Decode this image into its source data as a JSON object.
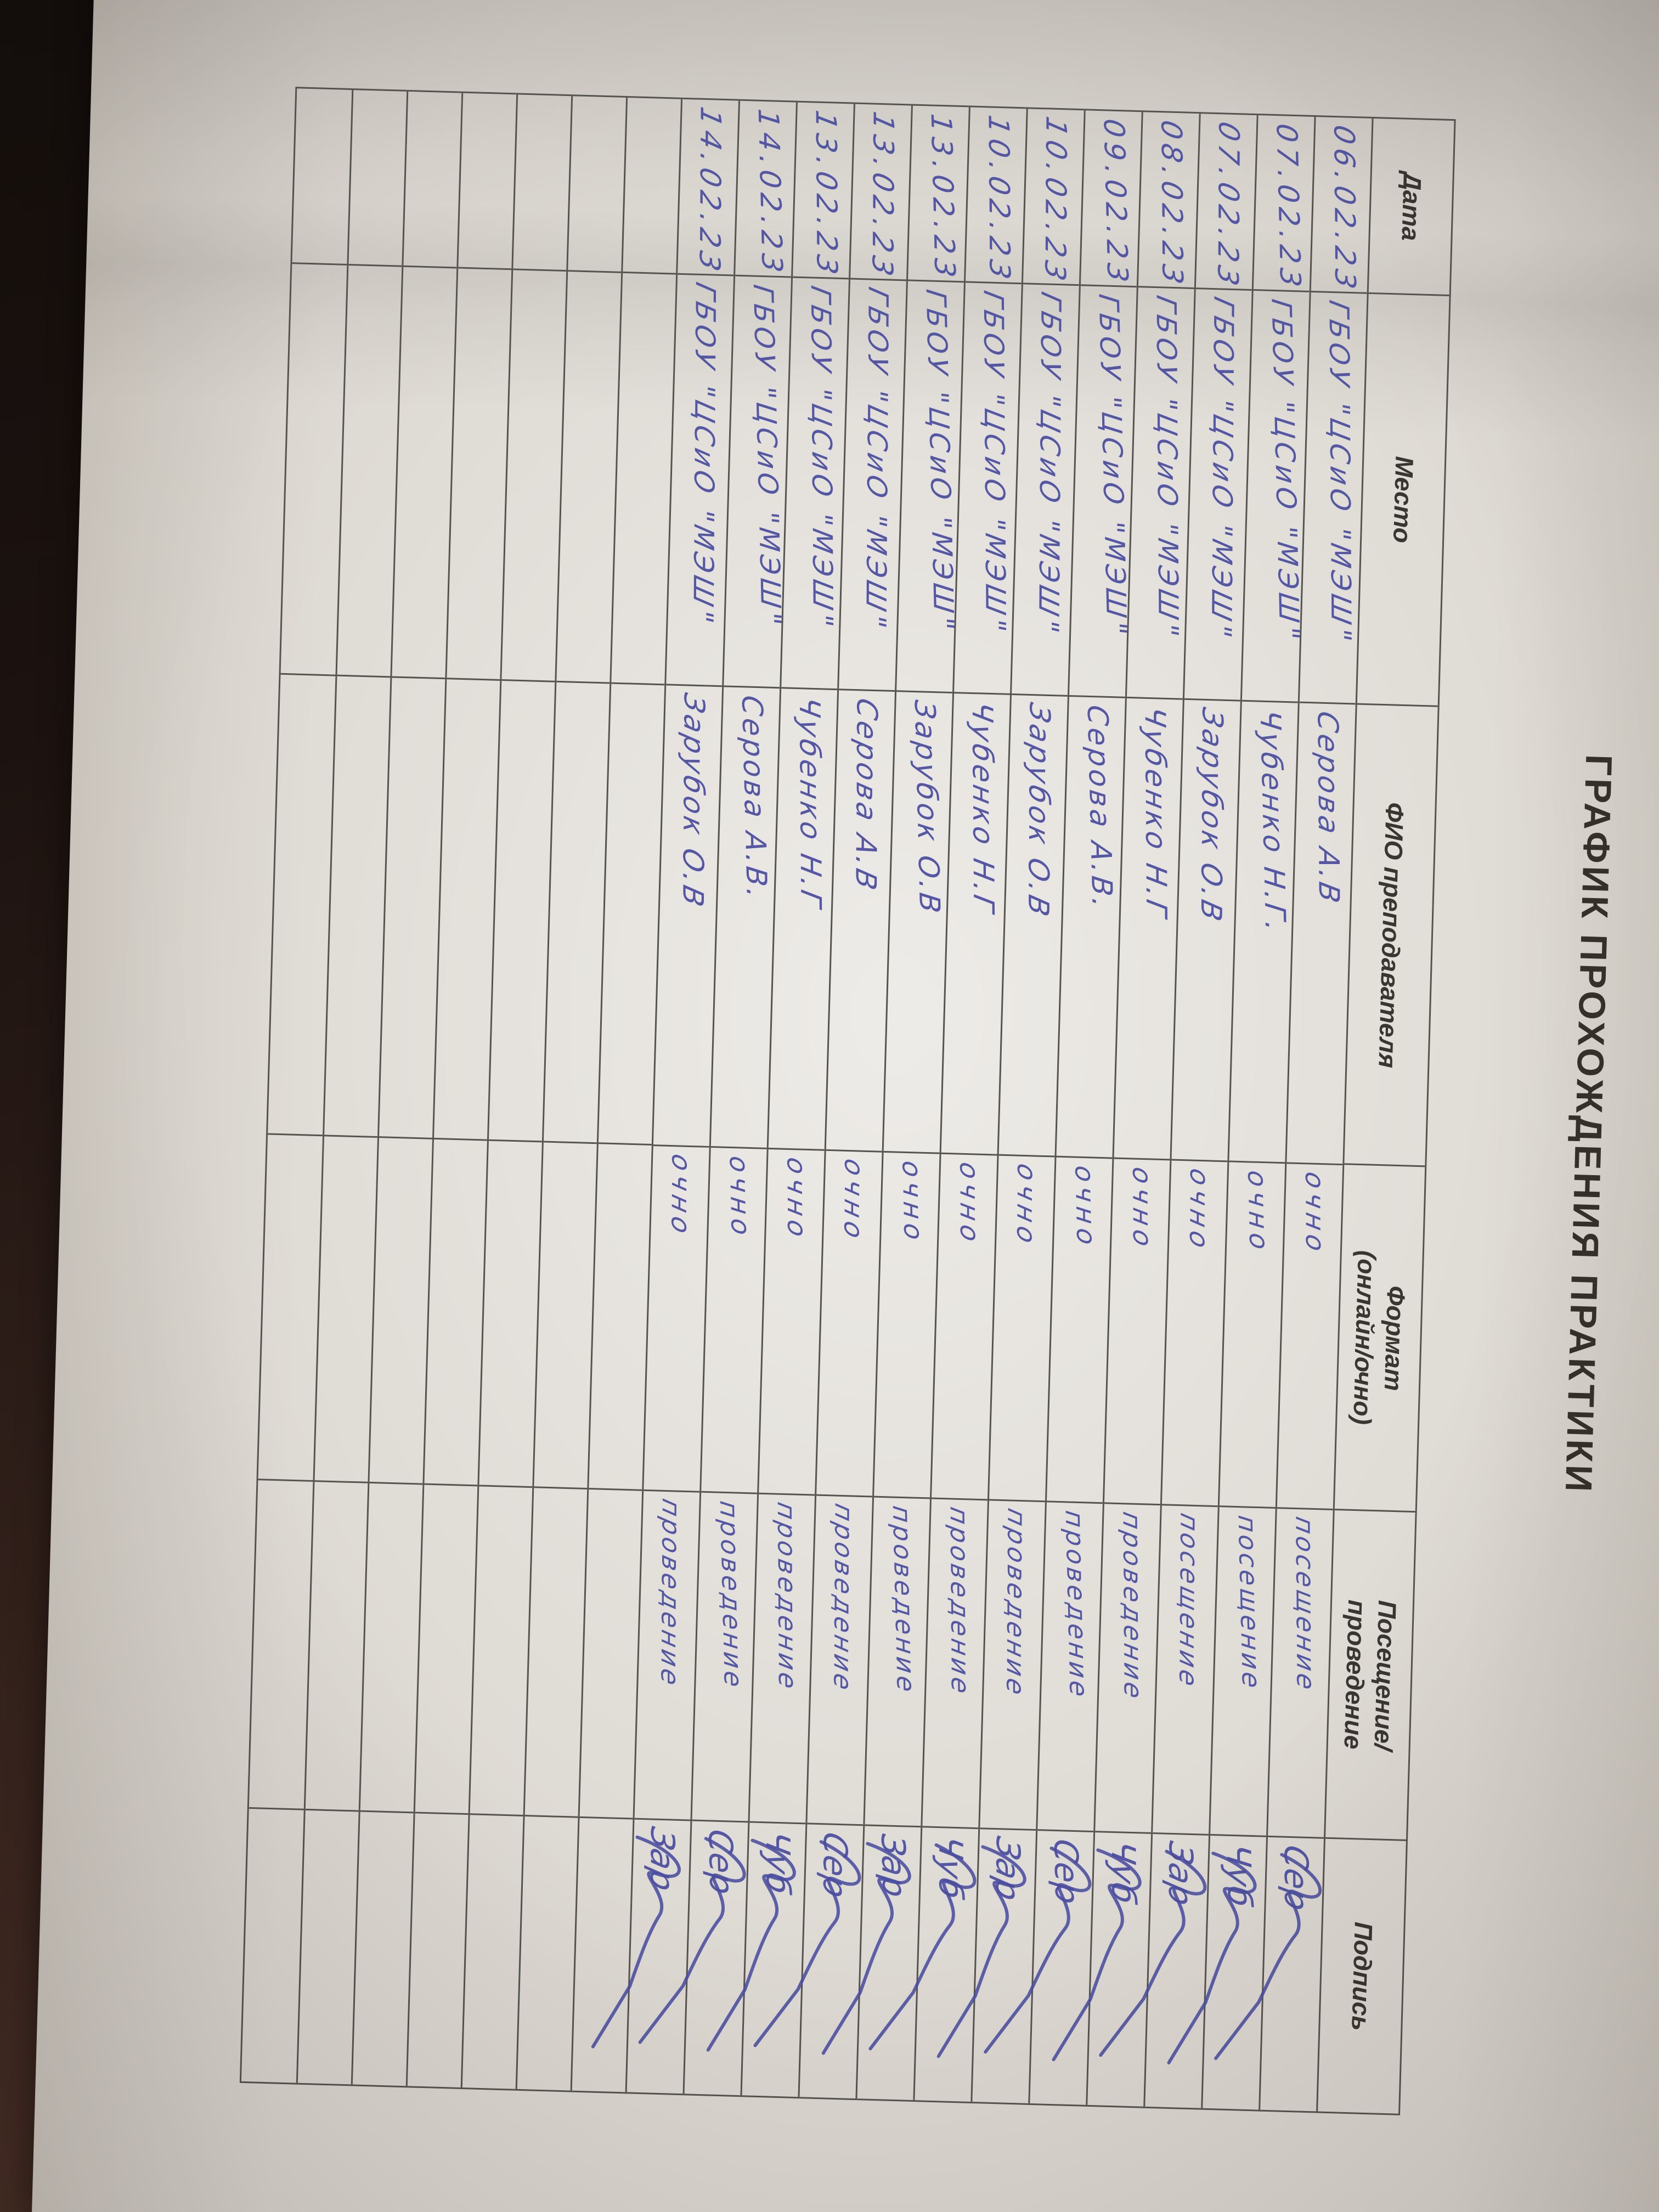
{
  "document": {
    "title": "ГРАФИК ПРОХОЖДЕНИЯ ПРАКТИКИ",
    "table": {
      "headers": [
        {
          "id": "date",
          "lines": [
            "Дата"
          ]
        },
        {
          "id": "place",
          "lines": [
            "Место"
          ]
        },
        {
          "id": "teacher",
          "lines": [
            "ФИО преподавателя"
          ]
        },
        {
          "id": "format",
          "lines": [
            "Формат",
            "(онлайн/очно)"
          ]
        },
        {
          "id": "type",
          "lines": [
            "Посещение/",
            "проведение"
          ]
        },
        {
          "id": "signature",
          "lines": [
            "Подпись"
          ]
        }
      ],
      "rows": [
        {
          "date": "06.02.23",
          "place": "ГБОУ \"ЦСиО \"МЭШ\"",
          "teacher": "Серова А.В",
          "format": "очно",
          "type": "посещение",
          "signature": "Сер"
        },
        {
          "date": "07.02.23",
          "place": "ГБОУ \"ЦСиО \"МЭШ\"",
          "teacher": "Чубенко Н.Г.",
          "format": "очно",
          "type": "посещение",
          "signature": "Чуб"
        },
        {
          "date": "07.02.23",
          "place": "ГБОУ \"ЦСиО \"МЭШ\"",
          "teacher": "Зарубок О.В",
          "format": "очно",
          "type": "посещение",
          "signature": "Зар"
        },
        {
          "date": "08.02.23",
          "place": "ГБОУ \"ЦСиО \"МЭШ\"",
          "teacher": "Чубенко Н.Г",
          "format": "очно",
          "type": "проведение",
          "signature": "Чуб"
        },
        {
          "date": "09.02.23",
          "place": "ГБОУ \"ЦСиО \"МЭШ\"",
          "teacher": "Серова А.В.",
          "format": "очно",
          "type": "проведение",
          "signature": "Сер"
        },
        {
          "date": "10.02.23",
          "place": "ГБОУ \"ЦСиО \"МЭШ\"",
          "teacher": "Зарубок О.В",
          "format": "очно",
          "type": "проведение",
          "signature": "Зар"
        },
        {
          "date": "10.02.23",
          "place": "ГБОУ \"ЦСиО \"МЭШ\"",
          "teacher": "Чубенко Н.Г",
          "format": "очно",
          "type": "проведение",
          "signature": "Чуб"
        },
        {
          "date": "13.02.23",
          "place": "ГБОУ \"ЦСиО \"МЭШ\"",
          "teacher": "Зарубок О.В",
          "format": "очно",
          "type": "проведение",
          "signature": "Зар"
        },
        {
          "date": "13.02.23",
          "place": "ГБОУ \"ЦСиО \"МЭШ\"",
          "teacher": "Серова А.В",
          "format": "очно",
          "type": "проведение",
          "signature": "Сер"
        },
        {
          "date": "13.02.23",
          "place": "ГБОУ \"ЦСиО \"МЭШ\"",
          "teacher": "Чубенко Н.Г",
          "format": "очно",
          "type": "проведение",
          "signature": "Чуб"
        },
        {
          "date": "14.02.23",
          "place": "ГБОУ \"ЦСиО \"МЭШ\"",
          "teacher": "Серова А.В.",
          "format": "очно",
          "type": "проведение",
          "signature": "Сер"
        },
        {
          "date": "14.02.23",
          "place": "ГБОУ \"ЦСиО \"МЭШ\"",
          "teacher": "Зарубок О.В",
          "format": "очно",
          "type": "проведение",
          "signature": "Зар"
        }
      ],
      "empty_row_count": 7
    }
  },
  "colors": {
    "ink": "#4a4da0",
    "grid_line": "#56544e",
    "printed_text": "#34302a",
    "paper": "#dcd8d1",
    "desk_surface": "#33211b"
  }
}
